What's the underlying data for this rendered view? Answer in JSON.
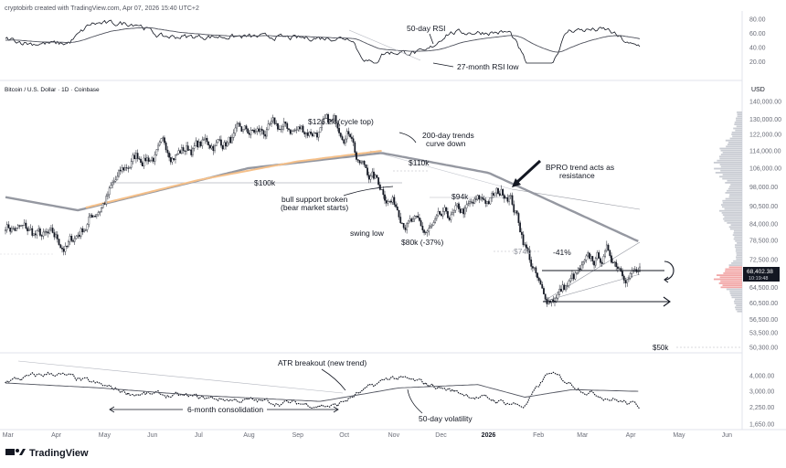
{
  "header": {
    "credit": "cryptobirb created with TradingView.com, Apr 07, 2026 15:40 UTC+2"
  },
  "footer": {
    "brand": "TradingView"
  },
  "chart_data": [
    {
      "panel": "rsi",
      "type": "line",
      "yticks": [
        "80.00",
        "60.00",
        "40.00",
        "20.00"
      ],
      "ylim": [
        0,
        90
      ],
      "annotations": [
        "50-day RSI",
        "27-month RSI low"
      ]
    },
    {
      "panel": "price",
      "type": "candlestick",
      "title": "Bitcoin / U.S. Dollar · 1D · Coinbase",
      "unit": "USD",
      "scale": "log",
      "yticks": [
        "140,000.00",
        "130,000.00",
        "122,000.00",
        "114,000.00",
        "106,000.00",
        "98,000.00",
        "90,500.00",
        "84,000.00",
        "78,500.00",
        "72,500.00",
        "64,500.00",
        "60,500.00",
        "56,500.00",
        "53,500.00",
        "50,300.00"
      ],
      "price_label": "68,402.38",
      "countdown_label": "10:19:48",
      "level_label": "$50k",
      "xticks": [
        "Mar",
        "Apr",
        "May",
        "Jun",
        "Jul",
        "Aug",
        "Sep",
        "Oct",
        "Nov",
        "Dec",
        "2026",
        "Feb",
        "Mar",
        "Apr",
        "May",
        "Jun"
      ],
      "annotations": {
        "cycle_top": "$126.2k (cycle top)",
        "trends_curve_l1": "200-day trends",
        "trends_curve_l2": "curve down",
        "level_110k": "$110k",
        "level_100k": "$100k",
        "level_94k": "$94k",
        "bpro_l1": "BPRO trend acts as",
        "bpro_l2": "resistance",
        "support_l1": "bull support broken",
        "support_l2": "(bear market starts)",
        "swing_low": "swing low",
        "drop_37": "$80k (-37%)",
        "level_74k": "$74k",
        "drop_41": "-41%"
      },
      "series": [
        {
          "name": "Price",
          "key_points": [
            [
              "2025-02-28",
              84000
            ],
            [
              "2025-04-08",
              76000
            ],
            [
              "2025-05-22",
              111000
            ],
            [
              "2025-08-14",
              123000
            ],
            [
              "2025-10-06",
              126200
            ],
            [
              "2025-10-10",
              110000
            ],
            [
              "2025-11-21",
              80000
            ],
            [
              "2026-01-14",
              97000
            ],
            [
              "2026-02-05",
              60500
            ],
            [
              "2026-03-17",
              74000
            ],
            [
              "2026-04-07",
              68402.38
            ]
          ]
        },
        {
          "name": "200-day MA",
          "key_points": [
            [
              "2025-02-28",
              94000
            ],
            [
              "2025-04-15",
              89000
            ],
            [
              "2025-06-01",
              96000
            ],
            [
              "2025-08-01",
              106000
            ],
            [
              "2025-10-25",
              113000
            ],
            [
              "2026-01-01",
              104000
            ],
            [
              "2026-04-07",
              78000
            ]
          ]
        },
        {
          "name": "BPRO trend",
          "key_points": [
            [
              "2025-04-20",
              90000
            ],
            [
              "2025-07-01",
              101000
            ],
            [
              "2025-09-01",
              109000
            ],
            [
              "2025-10-25",
              114000
            ]
          ]
        }
      ]
    },
    {
      "panel": "atr",
      "type": "line",
      "yticks": [
        "4,000.00",
        "3,000.00",
        "2,250.00",
        "1,650.00"
      ],
      "ylim": [
        1400,
        4800
      ],
      "annotations": [
        "ATR breakout (new trend)",
        "6-month consolidation",
        "50-day volatility"
      ]
    }
  ]
}
